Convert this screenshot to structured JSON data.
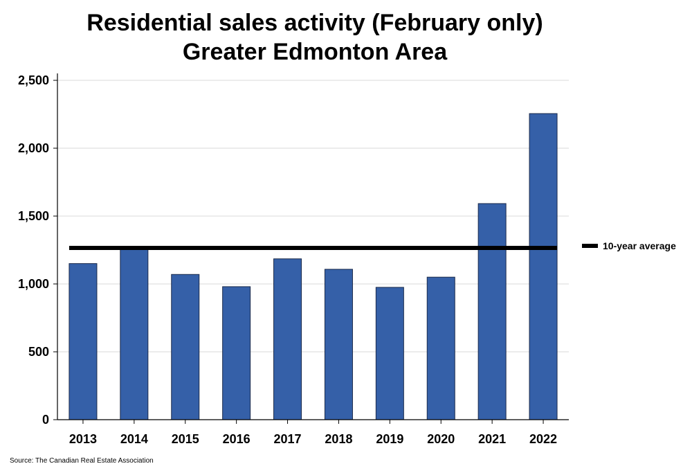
{
  "chart_data": {
    "type": "bar",
    "title": "Residential sales activity (February only)",
    "subtitle": "Greater Edmonton Area",
    "xlabel": "",
    "ylabel": "",
    "categories": [
      "2013",
      "2014",
      "2015",
      "2016",
      "2017",
      "2018",
      "2019",
      "2020",
      "2021",
      "2022"
    ],
    "series": [
      {
        "values": [
          1150,
          1265,
          1070,
          980,
          1185,
          1108,
          975,
          1050,
          1592,
          2255
        ]
      }
    ],
    "reference_line": {
      "name": "10-year average",
      "value": 1265
    },
    "ylim": [
      0,
      2500
    ],
    "yticks": [
      0,
      500,
      1000,
      1500,
      2000,
      2500
    ],
    "ytick_labels": [
      "0",
      "500",
      "1,000",
      "1,500",
      "2,000",
      "2,500"
    ],
    "grid": true,
    "legend_position": "right",
    "colors": {
      "bar": "#3560a8",
      "bar_outline": "#1b2a4a",
      "average_line": "#000000",
      "grid": "#d9d9d9"
    },
    "source": "Source: The Canadian Real Estate Association"
  }
}
